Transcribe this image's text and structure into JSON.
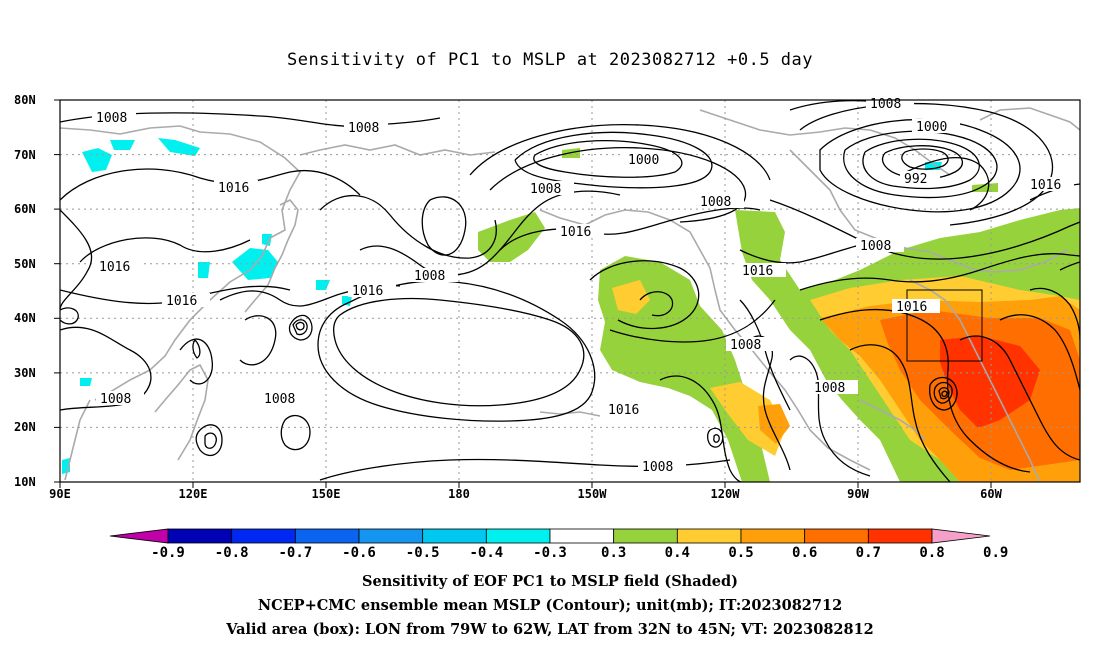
{
  "title": "Sensitivity of PC1 to MSLP at 2023082712 +0.5 day",
  "lat_labels": [
    "80N",
    "70N",
    "60N",
    "50N",
    "40N",
    "30N",
    "20N",
    "10N"
  ],
  "lon_labels": [
    "90E",
    "120E",
    "150E",
    "180",
    "150W",
    "120W",
    "90W",
    "60W"
  ],
  "contour_labels": [
    "1008",
    "1008",
    "1008",
    "1000",
    "992",
    "1016",
    "1016",
    "1016",
    "1008",
    "1000",
    "1008",
    "1016",
    "1016",
    "1008",
    "1008",
    "1016",
    "1016",
    "1016",
    "1008",
    "1016",
    "1008",
    "1008",
    "1008",
    "1008"
  ],
  "colorbar": {
    "labels": [
      "-0.9",
      "-0.8",
      "-0.7",
      "-0.6",
      "-0.5",
      "-0.4",
      "-0.3",
      "0.3",
      "0.4",
      "0.5",
      "0.6",
      "0.7",
      "0.8",
      "0.9"
    ],
    "colors": [
      "#c000a8",
      "#0000b4",
      "#0028f0",
      "#0a64f0",
      "#1496f0",
      "#00c8f0",
      "#00f0f0",
      "#ffffff",
      "#96d23c",
      "#ffcd32",
      "#ffa00a",
      "#ff6e00",
      "#ff3200",
      "#f5a0c8"
    ]
  },
  "shading": {
    "low_color": "#00f0f0",
    "green": "#96d23c",
    "yellow": "#ffcd32",
    "orange": "#ffa00a",
    "dark_orange": "#ff6e00",
    "red": "#ff3200"
  },
  "caption": {
    "line1": "Sensitivity of EOF PC1 to MSLP field (Shaded)",
    "line2": "NCEP+CMC ensemble mean MSLP (Contour); unit(mb); IT:2023082712",
    "line3": "Valid area (box): LON from 79W to 62W, LAT from 32N to 45N; VT: 2023082812"
  }
}
